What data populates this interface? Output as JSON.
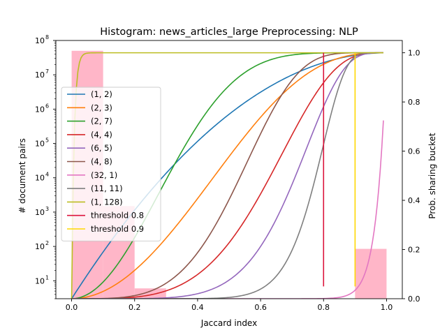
{
  "chart_data": {
    "type": "line",
    "title": "Histogram: news_articles_large Preprocessing: NLP",
    "xlabel": "Jaccard index",
    "ylabel_left": "# document pairs",
    "ylabel_right": "Prob. sharing bucket",
    "xlim": [
      -0.05,
      1.05
    ],
    "ylim_left": [
      3,
      100000000
    ],
    "yscale_left": "log",
    "ylim_right": [
      0,
      1.05
    ],
    "x_ticks": [
      "0.0",
      "0.2",
      "0.4",
      "0.6",
      "0.8",
      "1.0"
    ],
    "y_left_ticks": [
      {
        "exp": "1",
        "value": 10
      },
      {
        "exp": "2",
        "value": 100
      },
      {
        "exp": "3",
        "value": 1000
      },
      {
        "exp": "4",
        "value": 10000
      },
      {
        "exp": "5",
        "value": 100000
      },
      {
        "exp": "6",
        "value": 1000000
      },
      {
        "exp": "7",
        "value": 10000000
      },
      {
        "exp": "8",
        "value": 100000000
      }
    ],
    "y_right_ticks": [
      "0.0",
      "0.2",
      "0.4",
      "0.6",
      "0.8",
      "1.0"
    ],
    "histogram": {
      "color": "#ffb6c8",
      "bins": [
        {
          "x0": 0.0,
          "x1": 0.1,
          "count": 50000000
        },
        {
          "x0": 0.1,
          "x1": 0.2,
          "count": 1500
        },
        {
          "x0": 0.2,
          "x1": 0.3,
          "count": 6
        },
        {
          "x0": 0.9,
          "x1": 1.0,
          "count": 85
        }
      ]
    },
    "series": [
      {
        "name": "(1, 2)",
        "r": 1,
        "b": 2,
        "color": "#1f77b4"
      },
      {
        "name": "(2, 3)",
        "r": 2,
        "b": 3,
        "color": "#ff7f0e"
      },
      {
        "name": "(2, 7)",
        "r": 2,
        "b": 7,
        "color": "#2ca02c"
      },
      {
        "name": "(4, 4)",
        "r": 4,
        "b": 4,
        "color": "#d62728"
      },
      {
        "name": "(6, 5)",
        "r": 6,
        "b": 5,
        "color": "#9467bd"
      },
      {
        "name": "(4, 8)",
        "r": 4,
        "b": 8,
        "color": "#8c564b"
      },
      {
        "name": "(32, 1)",
        "r": 32,
        "b": 1,
        "color": "#e377c2"
      },
      {
        "name": "(11, 11)",
        "r": 11,
        "b": 11,
        "color": "#7f7f7f"
      },
      {
        "name": "(1, 128)",
        "r": 1,
        "b": 128,
        "color": "#bcbd22"
      }
    ],
    "thresholds": [
      {
        "name": "threshold 0.8",
        "x": 0.8,
        "y_from": 0.05,
        "y_to": 1.0,
        "color": "#dc143c"
      },
      {
        "name": "threshold 0.9",
        "x": 0.9,
        "y_from": 0.05,
        "y_to": 1.0,
        "color": "#ffd700"
      }
    ],
    "legend_position": "center-left",
    "grid": false
  }
}
